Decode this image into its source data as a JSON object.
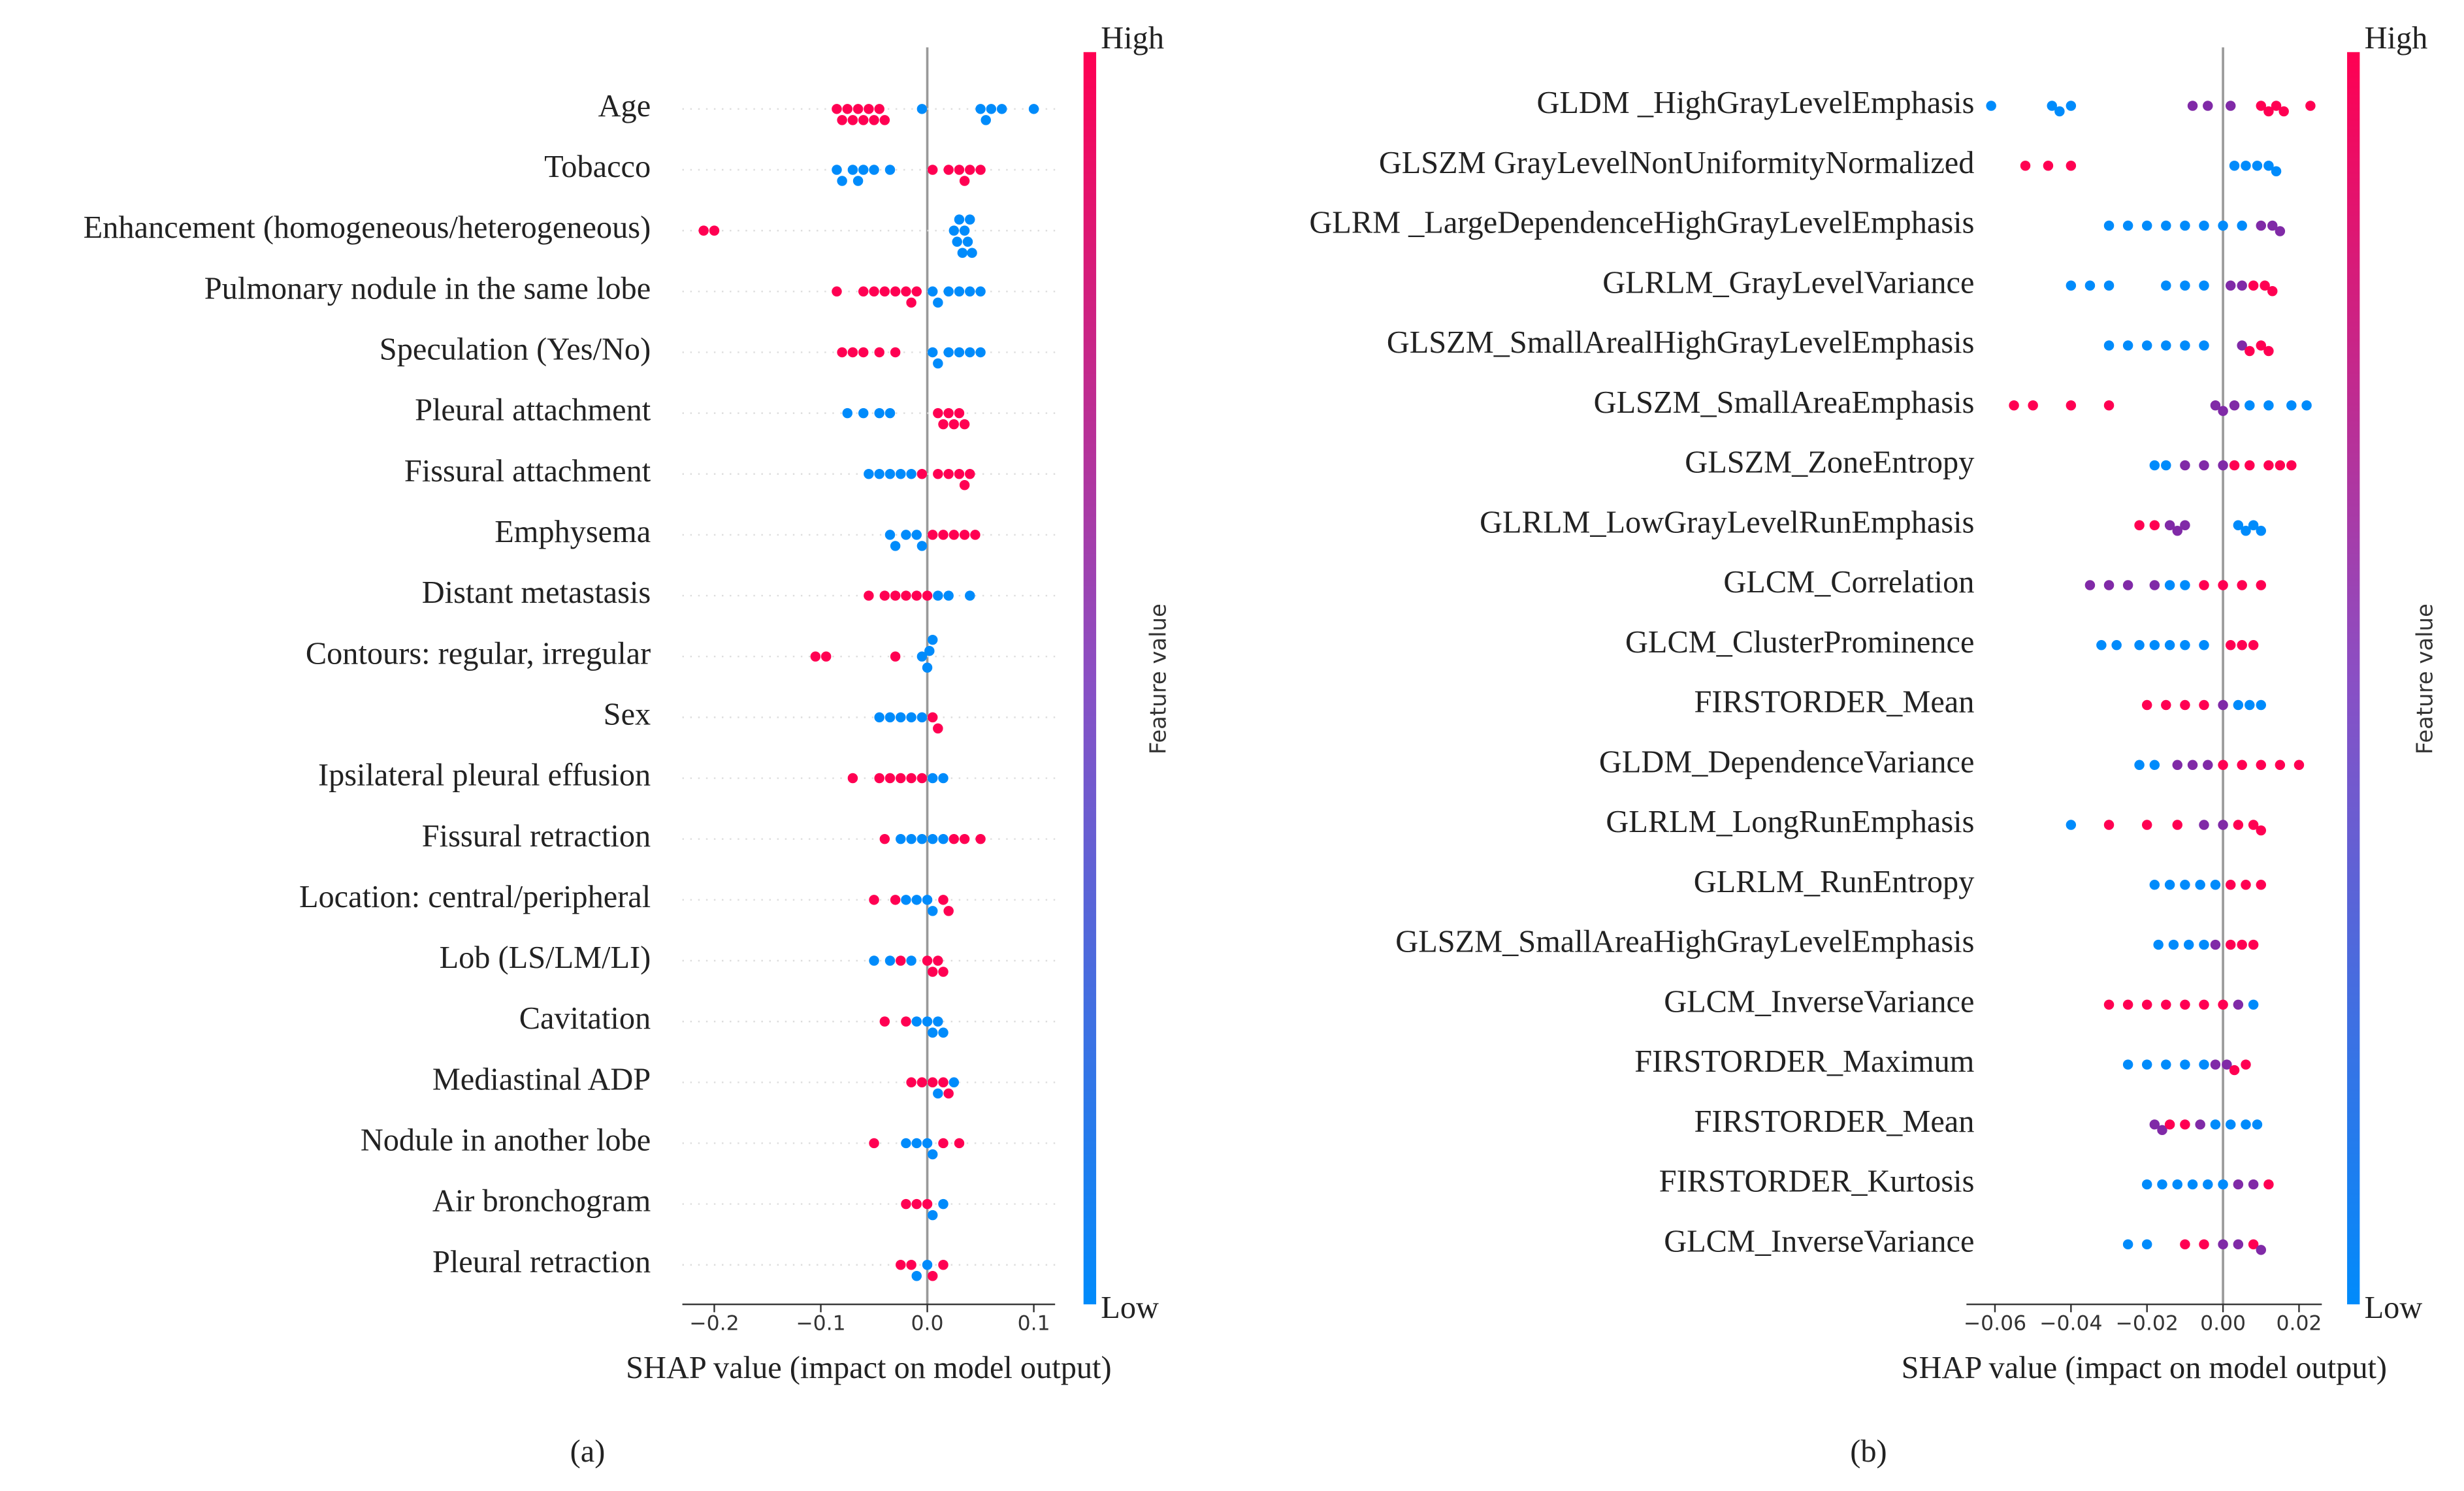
{
  "chart_data": [
    {
      "type": "beeswarm",
      "caption": "(a)",
      "xlabel": "SHAP value (impact on model output)",
      "xlim": [
        -0.23,
        0.12
      ],
      "xticks": [
        {
          "value": -0.2,
          "label": "−0.2"
        },
        {
          "value": -0.1,
          "label": "−0.1"
        },
        {
          "value": 0,
          "label": "0.0"
        },
        0.1
      ],
      "colorbar": {
        "label": "Feature value",
        "high": "High",
        "low": "Low"
      },
      "colormap": [
        "#008bfb",
        "#ff0052"
      ],
      "row_lines": true,
      "series": [
        {
          "name": "Age",
          "values": [
            -0.085,
            -0.08,
            -0.075,
            -0.07,
            -0.065,
            -0.06,
            -0.055,
            -0.05,
            -0.045,
            -0.04,
            -0.005,
            0.05,
            0.055,
            0.06,
            0.07,
            0.1
          ],
          "feature_values": [
            1,
            1,
            1,
            1,
            1,
            1,
            1,
            1,
            1,
            1,
            0,
            0,
            0,
            0,
            0,
            0
          ]
        },
        {
          "name": "Tobacco",
          "values": [
            -0.085,
            -0.08,
            -0.07,
            -0.065,
            -0.06,
            -0.05,
            -0.035,
            0.005,
            0.02,
            0.03,
            0.035,
            0.04,
            0.05
          ],
          "feature_values": [
            0,
            0,
            0,
            0,
            0,
            0,
            0,
            1,
            1,
            1,
            1,
            1,
            1
          ]
        },
        {
          "name": "Enhancement (homogeneous/heterogeneous)",
          "values": [
            -0.21,
            -0.2,
            0.025,
            0.028,
            0.03,
            0.033,
            0.035,
            0.038,
            0.04,
            0.042
          ],
          "feature_values": [
            1,
            1,
            0,
            0,
            0,
            0,
            0,
            0,
            0,
            0
          ]
        },
        {
          "name": "Pulmonary nodule in the same lobe",
          "values": [
            -0.085,
            -0.06,
            -0.05,
            -0.04,
            -0.03,
            -0.02,
            -0.015,
            -0.01,
            0.005,
            0.01,
            0.02,
            0.03,
            0.04,
            0.05
          ],
          "feature_values": [
            1,
            1,
            1,
            1,
            1,
            1,
            1,
            1,
            0,
            0,
            0,
            0,
            0,
            0
          ]
        },
        {
          "name": "Speculation (Yes/No)",
          "values": [
            -0.08,
            -0.07,
            -0.06,
            -0.045,
            -0.03,
            0.005,
            0.01,
            0.02,
            0.03,
            0.04,
            0.05
          ],
          "feature_values": [
            1,
            1,
            1,
            1,
            1,
            0,
            0,
            0,
            0,
            0,
            0
          ]
        },
        {
          "name": "Pleural attachment",
          "values": [
            -0.075,
            -0.06,
            -0.045,
            -0.035,
            0.01,
            0.015,
            0.02,
            0.025,
            0.03,
            0.035
          ],
          "feature_values": [
            0,
            0,
            0,
            0,
            1,
            1,
            1,
            1,
            1,
            1
          ]
        },
        {
          "name": "Fissural attachment",
          "values": [
            -0.055,
            -0.045,
            -0.035,
            -0.025,
            -0.015,
            -0.005,
            0.01,
            0.02,
            0.03,
            0.035,
            0.04
          ],
          "feature_values": [
            0,
            0,
            0,
            0,
            0,
            1,
            1,
            1,
            1,
            1,
            1
          ]
        },
        {
          "name": "Emphysema",
          "values": [
            -0.035,
            -0.03,
            -0.02,
            -0.01,
            -0.005,
            0.005,
            0.015,
            0.025,
            0.035,
            0.045
          ],
          "feature_values": [
            0,
            0,
            0,
            0,
            0,
            1,
            1,
            1,
            1,
            1
          ]
        },
        {
          "name": "Distant metastasis",
          "values": [
            -0.055,
            -0.04,
            -0.03,
            -0.02,
            -0.01,
            0,
            0.01,
            0.02,
            0.04
          ],
          "feature_values": [
            1,
            1,
            1,
            1,
            1,
            1,
            0,
            0,
            0
          ]
        },
        {
          "name": "Contours: regular, irregular",
          "values": [
            -0.105,
            -0.095,
            -0.03,
            -0.005,
            0,
            0.002,
            0.005
          ],
          "feature_values": [
            1,
            1,
            1,
            0,
            0,
            0,
            0
          ]
        },
        {
          "name": "Sex",
          "values": [
            -0.045,
            -0.035,
            -0.025,
            -0.015,
            -0.005,
            0.005,
            0.01
          ],
          "feature_values": [
            0,
            0,
            0,
            0,
            0,
            1,
            1
          ]
        },
        {
          "name": "Ipsilateral pleural effusion",
          "values": [
            -0.07,
            -0.045,
            -0.035,
            -0.025,
            -0.015,
            -0.005,
            0.005,
            0.015
          ],
          "feature_values": [
            1,
            1,
            1,
            1,
            1,
            1,
            0,
            0
          ]
        },
        {
          "name": "Fissural retraction",
          "values": [
            -0.04,
            -0.025,
            -0.015,
            -0.005,
            0.005,
            0.015,
            0.025,
            0.035,
            0.05
          ],
          "feature_values": [
            1,
            0,
            0,
            0,
            0,
            0,
            1,
            1,
            1
          ]
        },
        {
          "name": "Location: central/peripheral",
          "values": [
            -0.05,
            -0.03,
            -0.02,
            -0.01,
            0,
            0.005,
            0.015,
            0.02
          ],
          "feature_values": [
            1,
            1,
            0,
            0,
            0,
            0,
            1,
            1
          ]
        },
        {
          "name": "Lob (LS/LM/LI)",
          "values": [
            -0.05,
            -0.035,
            -0.025,
            -0.015,
            0,
            0.005,
            0.01,
            0.015
          ],
          "feature_values": [
            0,
            0,
            1,
            0,
            1,
            1,
            1,
            1
          ]
        },
        {
          "name": "Cavitation",
          "values": [
            -0.04,
            -0.02,
            -0.01,
            0,
            0.005,
            0.01,
            0.015
          ],
          "feature_values": [
            1,
            1,
            0,
            0,
            0,
            0,
            0
          ]
        },
        {
          "name": "Mediastinal ADP",
          "values": [
            -0.015,
            -0.005,
            0.005,
            0.015,
            0.02,
            0.01,
            0.025
          ],
          "feature_values": [
            1,
            1,
            1,
            1,
            1,
            0,
            0
          ]
        },
        {
          "name": "Nodule in another lobe",
          "values": [
            -0.05,
            -0.02,
            -0.01,
            0,
            0.005,
            0.015,
            0.03
          ],
          "feature_values": [
            1,
            0,
            0,
            0,
            0,
            1,
            1
          ]
        },
        {
          "name": "Air bronchogram",
          "values": [
            -0.02,
            -0.01,
            0,
            0.005,
            0.015
          ],
          "feature_values": [
            1,
            1,
            1,
            0,
            0
          ]
        },
        {
          "name": "Pleural retraction",
          "values": [
            -0.025,
            -0.015,
            -0.01,
            0,
            0.005,
            0.015
          ],
          "feature_values": [
            1,
            1,
            0,
            0,
            1,
            1
          ]
        }
      ]
    },
    {
      "type": "beeswarm",
      "caption": "(b)",
      "xlabel": "SHAP value (impact on model output)",
      "xlim": [
        -0.0675,
        0.026
      ],
      "xticks": [
        {
          "value": -0.06,
          "label": "−0.06"
        },
        {
          "value": -0.04,
          "label": "−0.04"
        },
        {
          "value": -0.02,
          "label": "−0.02"
        },
        {
          "value": 0,
          "label": "0.00"
        },
        0.02
      ],
      "colorbar": {
        "label": "Feature value",
        "high": "High",
        "low": "Low"
      },
      "colormap": [
        "#008bfb",
        "#ff0052"
      ],
      "row_lines": false,
      "series": [
        {
          "name": "GLDM _HighGrayLevelEmphasis",
          "values": [
            -0.061,
            -0.045,
            -0.043,
            -0.04,
            -0.008,
            -0.004,
            0.002,
            0.01,
            0.012,
            0.014,
            0.016,
            0.023
          ],
          "feature_values": [
            0,
            0,
            0,
            0,
            0.5,
            0.5,
            0.5,
            1,
            1,
            1,
            1,
            1
          ]
        },
        {
          "name": "GLSZM GrayLevelNonUniformityNormalized",
          "values": [
            -0.052,
            -0.046,
            -0.04,
            0.003,
            0.006,
            0.009,
            0.012,
            0.014
          ],
          "feature_values": [
            1,
            1,
            1,
            0,
            0,
            0,
            0,
            0
          ]
        },
        {
          "name": "GLRM _LargeDependenceHighGrayLevelEmphasis",
          "values": [
            -0.03,
            -0.025,
            -0.02,
            -0.015,
            -0.01,
            -0.005,
            0,
            0.005,
            0.01,
            0.013,
            0.015
          ],
          "feature_values": [
            0,
            0,
            0,
            0,
            0,
            0,
            0,
            0,
            0.5,
            0.5,
            0.5
          ]
        },
        {
          "name": "GLRLM_GrayLevelVariance",
          "values": [
            -0.04,
            -0.035,
            -0.03,
            -0.015,
            -0.01,
            -0.005,
            0.002,
            0.005,
            0.008,
            0.011,
            0.013
          ],
          "feature_values": [
            0,
            0,
            0,
            0,
            0,
            0,
            0.5,
            0.5,
            1,
            1,
            1
          ]
        },
        {
          "name": "GLSZM_SmallArealHighGrayLevelEmphasis",
          "values": [
            -0.03,
            -0.025,
            -0.02,
            -0.015,
            -0.01,
            -0.005,
            0.005,
            0.007,
            0.01,
            0.012
          ],
          "feature_values": [
            0,
            0,
            0,
            0,
            0,
            0,
            0.5,
            1,
            1,
            1
          ]
        },
        {
          "name": "GLSZM_SmallAreaEmphasis",
          "values": [
            -0.055,
            -0.05,
            -0.04,
            -0.03,
            -0.002,
            0,
            0.003,
            0.007,
            0.012,
            0.018,
            0.022
          ],
          "feature_values": [
            1,
            1,
            1,
            1,
            0.5,
            0.5,
            0.5,
            0,
            0,
            0,
            0
          ]
        },
        {
          "name": "GLSZM_ZoneEntropy",
          "values": [
            -0.018,
            -0.015,
            -0.01,
            -0.005,
            0,
            0.003,
            0.007,
            0.012,
            0.015,
            0.018
          ],
          "feature_values": [
            0,
            0,
            0.5,
            0.5,
            0.5,
            1,
            1,
            1,
            1,
            1
          ]
        },
        {
          "name": "GLRLM_LowGrayLevelRunEmphasis",
          "values": [
            -0.022,
            -0.018,
            -0.014,
            -0.012,
            -0.01,
            0.004,
            0.006,
            0.008,
            0.01
          ],
          "feature_values": [
            1,
            1,
            0.5,
            0.5,
            0.5,
            0,
            0,
            0,
            0
          ]
        },
        {
          "name": "GLCM_Correlation",
          "values": [
            -0.035,
            -0.03,
            -0.025,
            -0.018,
            -0.014,
            -0.01,
            -0.005,
            0,
            0.005,
            0.01
          ],
          "feature_values": [
            0.5,
            0.5,
            0.5,
            0.5,
            0,
            0,
            1,
            1,
            1,
            1
          ]
        },
        {
          "name": "GLCM_ClusterProminence",
          "values": [
            -0.032,
            -0.028,
            -0.022,
            -0.018,
            -0.014,
            -0.01,
            -0.005,
            0.002,
            0.005,
            0.008
          ],
          "feature_values": [
            0,
            0,
            0,
            0,
            0,
            0,
            0,
            1,
            1,
            1
          ]
        },
        {
          "name": "FIRSTORDER_Mean",
          "values": [
            -0.02,
            -0.015,
            -0.01,
            -0.005,
            0,
            0.004,
            0.007,
            0.01
          ],
          "feature_values": [
            1,
            1,
            1,
            1,
            0.5,
            0,
            0,
            0
          ]
        },
        {
          "name": "GLDM_DependenceVariance",
          "values": [
            -0.022,
            -0.018,
            -0.012,
            -0.008,
            -0.004,
            0,
            0.005,
            0.01,
            0.015,
            0.02
          ],
          "feature_values": [
            0,
            0,
            0.5,
            0.5,
            0.5,
            1,
            1,
            1,
            1,
            1
          ]
        },
        {
          "name": "GLRLM_LongRunEmphasis",
          "values": [
            -0.04,
            -0.03,
            -0.02,
            -0.012,
            -0.005,
            0,
            0.004,
            0.008,
            0.01
          ],
          "feature_values": [
            0,
            1,
            1,
            1,
            0.5,
            0.5,
            1,
            1,
            1
          ]
        },
        {
          "name": "GLRLM_RunEntropy",
          "values": [
            -0.018,
            -0.014,
            -0.01,
            -0.006,
            -0.002,
            0.002,
            0.006,
            0.01
          ],
          "feature_values": [
            0,
            0,
            0,
            0,
            0,
            1,
            1,
            1
          ]
        },
        {
          "name": "GLSZM_SmallAreaHighGrayLevelEmphasis",
          "values": [
            -0.017,
            -0.013,
            -0.009,
            -0.005,
            -0.002,
            0.002,
            0.005,
            0.008
          ],
          "feature_values": [
            0,
            0,
            0,
            0,
            0.5,
            1,
            1,
            1
          ]
        },
        {
          "name": "GLCM_InverseVariance",
          "values": [
            -0.03,
            -0.025,
            -0.02,
            -0.015,
            -0.01,
            -0.005,
            0,
            0.004,
            0.008
          ],
          "feature_values": [
            1,
            1,
            1,
            1,
            1,
            1,
            1,
            0.5,
            0
          ]
        },
        {
          "name": "FIRSTORDER_Maximum",
          "values": [
            -0.025,
            -0.02,
            -0.015,
            -0.01,
            -0.005,
            -0.002,
            0.001,
            0.003,
            0.006
          ],
          "feature_values": [
            0,
            0,
            0,
            0,
            0,
            0.5,
            0.5,
            1,
            1
          ]
        },
        {
          "name": "FIRSTORDER_Mean ",
          "values": [
            -0.018,
            -0.016,
            -0.014,
            -0.01,
            -0.006,
            -0.002,
            0.002,
            0.006,
            0.009
          ],
          "feature_values": [
            0.5,
            0.5,
            1,
            1,
            0.5,
            0,
            0,
            0,
            0
          ]
        },
        {
          "name": "FIRSTORDER_Kurtosis",
          "values": [
            -0.02,
            -0.016,
            -0.012,
            -0.008,
            -0.004,
            0,
            0.004,
            0.008,
            0.012
          ],
          "feature_values": [
            0,
            0,
            0,
            0,
            0,
            0,
            0.5,
            0.5,
            1
          ]
        },
        {
          "name": "GLCM_InverseVariance ",
          "values": [
            -0.025,
            -0.02,
            -0.01,
            -0.005,
            0,
            0.004,
            0.008,
            0.01
          ],
          "feature_values": [
            0,
            0,
            1,
            1,
            0.5,
            0.5,
            1,
            0.5
          ]
        }
      ]
    }
  ]
}
